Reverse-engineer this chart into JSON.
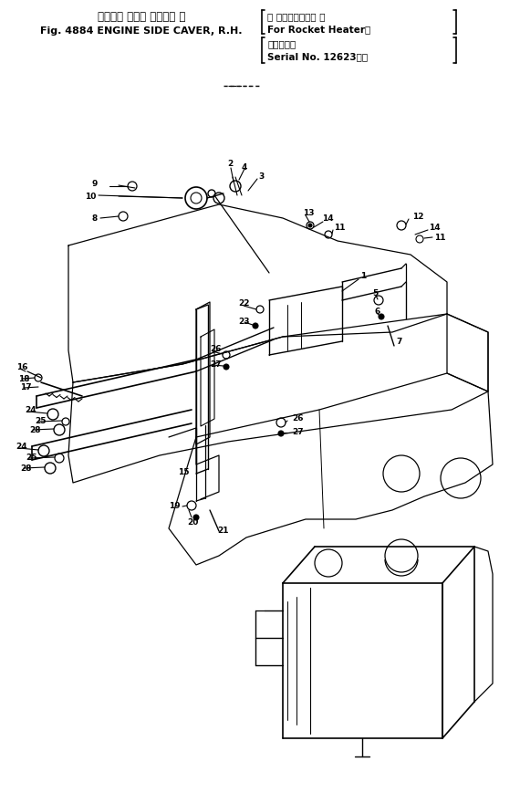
{
  "title_line1": "エンジン サイド カバー， 右",
  "title_line2": "Fig. 4884 ENGINE SIDE CAVER, R.H.",
  "title_right1": "（ ロケットヒータ 用",
  "title_right2": "For Rocket Heater）",
  "title_right3": "（適用号機",
  "title_right4": "Serial No. 12623～）",
  "bg_color": "#ffffff",
  "lc": "#000000",
  "figsize": [
    5.7,
    8.7
  ],
  "dpi": 100
}
